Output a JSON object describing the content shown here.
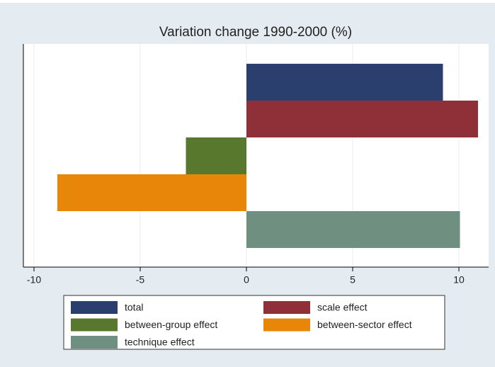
{
  "chart_data": {
    "type": "bar",
    "orientation": "horizontal",
    "title": "Variation change 1990-2000 (%)",
    "series": [
      {
        "name": "total",
        "color": "#2b3f6e",
        "values": [
          9.25
        ]
      },
      {
        "name": "scale effect",
        "color": "#8f3039",
        "values": [
          10.9
        ]
      },
      {
        "name": "between-group effect",
        "color": "#58782d",
        "values": [
          -2.85
        ]
      },
      {
        "name": "between-sector effect",
        "color": "#e8860a",
        "values": [
          -8.9
        ]
      },
      {
        "name": "technique effect",
        "color": "#6f8f80",
        "values": [
          10.05
        ]
      }
    ],
    "xlim": [
      -10.5,
      11.4
    ],
    "xticks": [
      -10,
      -5,
      0,
      5,
      10
    ],
    "grid": true
  }
}
